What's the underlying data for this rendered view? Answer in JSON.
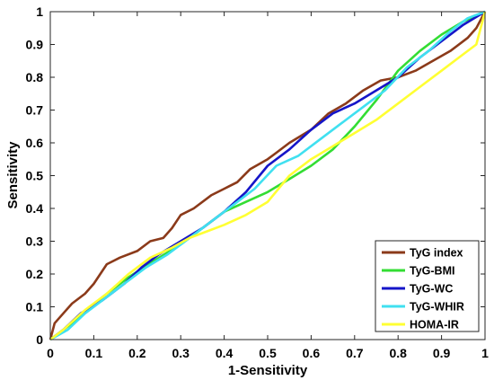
{
  "chart_data": {
    "type": "line",
    "title": "",
    "xlabel": "1-Sensitivity",
    "ylabel": "Sensitivity",
    "xlim": [
      0,
      1
    ],
    "ylim": [
      0,
      1
    ],
    "xticks": [
      "0",
      "0.1",
      "0.2",
      "0.3",
      "0.4",
      "0.5",
      "0.6",
      "0.7",
      "0.8",
      "0.9",
      "1"
    ],
    "yticks": [
      "0",
      "0.1",
      "0.2",
      "0.3",
      "0.4",
      "0.5",
      "0.6",
      "0.7",
      "0.8",
      "0.9",
      "1"
    ],
    "grid": false,
    "legend_position": "bottom-right",
    "series": [
      {
        "name": "TyG index",
        "color": "#8b3a1a",
        "points": [
          [
            0,
            0
          ],
          [
            0.01,
            0.05
          ],
          [
            0.03,
            0.08
          ],
          [
            0.05,
            0.11
          ],
          [
            0.08,
            0.14
          ],
          [
            0.1,
            0.17
          ],
          [
            0.13,
            0.23
          ],
          [
            0.16,
            0.25
          ],
          [
            0.2,
            0.27
          ],
          [
            0.23,
            0.3
          ],
          [
            0.26,
            0.31
          ],
          [
            0.28,
            0.34
          ],
          [
            0.3,
            0.38
          ],
          [
            0.33,
            0.4
          ],
          [
            0.37,
            0.44
          ],
          [
            0.4,
            0.46
          ],
          [
            0.43,
            0.48
          ],
          [
            0.46,
            0.52
          ],
          [
            0.5,
            0.55
          ],
          [
            0.52,
            0.57
          ],
          [
            0.55,
            0.6
          ],
          [
            0.6,
            0.64
          ],
          [
            0.64,
            0.69
          ],
          [
            0.68,
            0.72
          ],
          [
            0.72,
            0.76
          ],
          [
            0.76,
            0.79
          ],
          [
            0.8,
            0.8
          ],
          [
            0.84,
            0.82
          ],
          [
            0.88,
            0.85
          ],
          [
            0.92,
            0.88
          ],
          [
            0.96,
            0.92
          ],
          [
            0.98,
            0.95
          ],
          [
            1,
            1
          ]
        ]
      },
      {
        "name": "TyG-BMI",
        "color": "#33dd33",
        "points": [
          [
            0,
            0
          ],
          [
            0.03,
            0.03
          ],
          [
            0.07,
            0.07
          ],
          [
            0.12,
            0.13
          ],
          [
            0.18,
            0.19
          ],
          [
            0.25,
            0.25
          ],
          [
            0.3,
            0.29
          ],
          [
            0.35,
            0.34
          ],
          [
            0.4,
            0.39
          ],
          [
            0.45,
            0.42
          ],
          [
            0.5,
            0.45
          ],
          [
            0.55,
            0.49
          ],
          [
            0.6,
            0.53
          ],
          [
            0.65,
            0.58
          ],
          [
            0.7,
            0.65
          ],
          [
            0.75,
            0.73
          ],
          [
            0.8,
            0.82
          ],
          [
            0.85,
            0.88
          ],
          [
            0.9,
            0.93
          ],
          [
            0.95,
            0.97
          ],
          [
            1,
            1
          ]
        ]
      },
      {
        "name": "TyG-WC",
        "color": "#1515c8",
        "points": [
          [
            0,
            0
          ],
          [
            0.03,
            0.03
          ],
          [
            0.07,
            0.08
          ],
          [
            0.12,
            0.12
          ],
          [
            0.17,
            0.17
          ],
          [
            0.21,
            0.22
          ],
          [
            0.25,
            0.26
          ],
          [
            0.3,
            0.3
          ],
          [
            0.35,
            0.34
          ],
          [
            0.4,
            0.39
          ],
          [
            0.45,
            0.45
          ],
          [
            0.5,
            0.53
          ],
          [
            0.55,
            0.58
          ],
          [
            0.6,
            0.64
          ],
          [
            0.65,
            0.69
          ],
          [
            0.7,
            0.72
          ],
          [
            0.75,
            0.76
          ],
          [
            0.8,
            0.8
          ],
          [
            0.85,
            0.86
          ],
          [
            0.9,
            0.91
          ],
          [
            0.95,
            0.96
          ],
          [
            1,
            1
          ]
        ]
      },
      {
        "name": "TyG-WHIR",
        "color": "#40e0f0",
        "points": [
          [
            0,
            0
          ],
          [
            0.04,
            0.03
          ],
          [
            0.08,
            0.08
          ],
          [
            0.12,
            0.12
          ],
          [
            0.17,
            0.17
          ],
          [
            0.22,
            0.22
          ],
          [
            0.27,
            0.26
          ],
          [
            0.32,
            0.31
          ],
          [
            0.37,
            0.36
          ],
          [
            0.42,
            0.41
          ],
          [
            0.47,
            0.46
          ],
          [
            0.52,
            0.53
          ],
          [
            0.57,
            0.56
          ],
          [
            0.62,
            0.61
          ],
          [
            0.67,
            0.66
          ],
          [
            0.72,
            0.71
          ],
          [
            0.77,
            0.76
          ],
          [
            0.82,
            0.83
          ],
          [
            0.87,
            0.88
          ],
          [
            0.92,
            0.94
          ],
          [
            0.96,
            0.98
          ],
          [
            1,
            1
          ]
        ]
      },
      {
        "name": "HOMA-IR",
        "color": "#ffff33",
        "points": [
          [
            0,
            0
          ],
          [
            0.03,
            0.03
          ],
          [
            0.08,
            0.09
          ],
          [
            0.13,
            0.14
          ],
          [
            0.18,
            0.2
          ],
          [
            0.23,
            0.25
          ],
          [
            0.28,
            0.28
          ],
          [
            0.32,
            0.31
          ],
          [
            0.36,
            0.33
          ],
          [
            0.4,
            0.35
          ],
          [
            0.45,
            0.38
          ],
          [
            0.5,
            0.42
          ],
          [
            0.55,
            0.5
          ],
          [
            0.6,
            0.55
          ],
          [
            0.65,
            0.59
          ],
          [
            0.7,
            0.63
          ],
          [
            0.75,
            0.67
          ],
          [
            0.8,
            0.72
          ],
          [
            0.85,
            0.77
          ],
          [
            0.9,
            0.82
          ],
          [
            0.95,
            0.87
          ],
          [
            0.98,
            0.9
          ],
          [
            1,
            1
          ]
        ]
      }
    ]
  }
}
